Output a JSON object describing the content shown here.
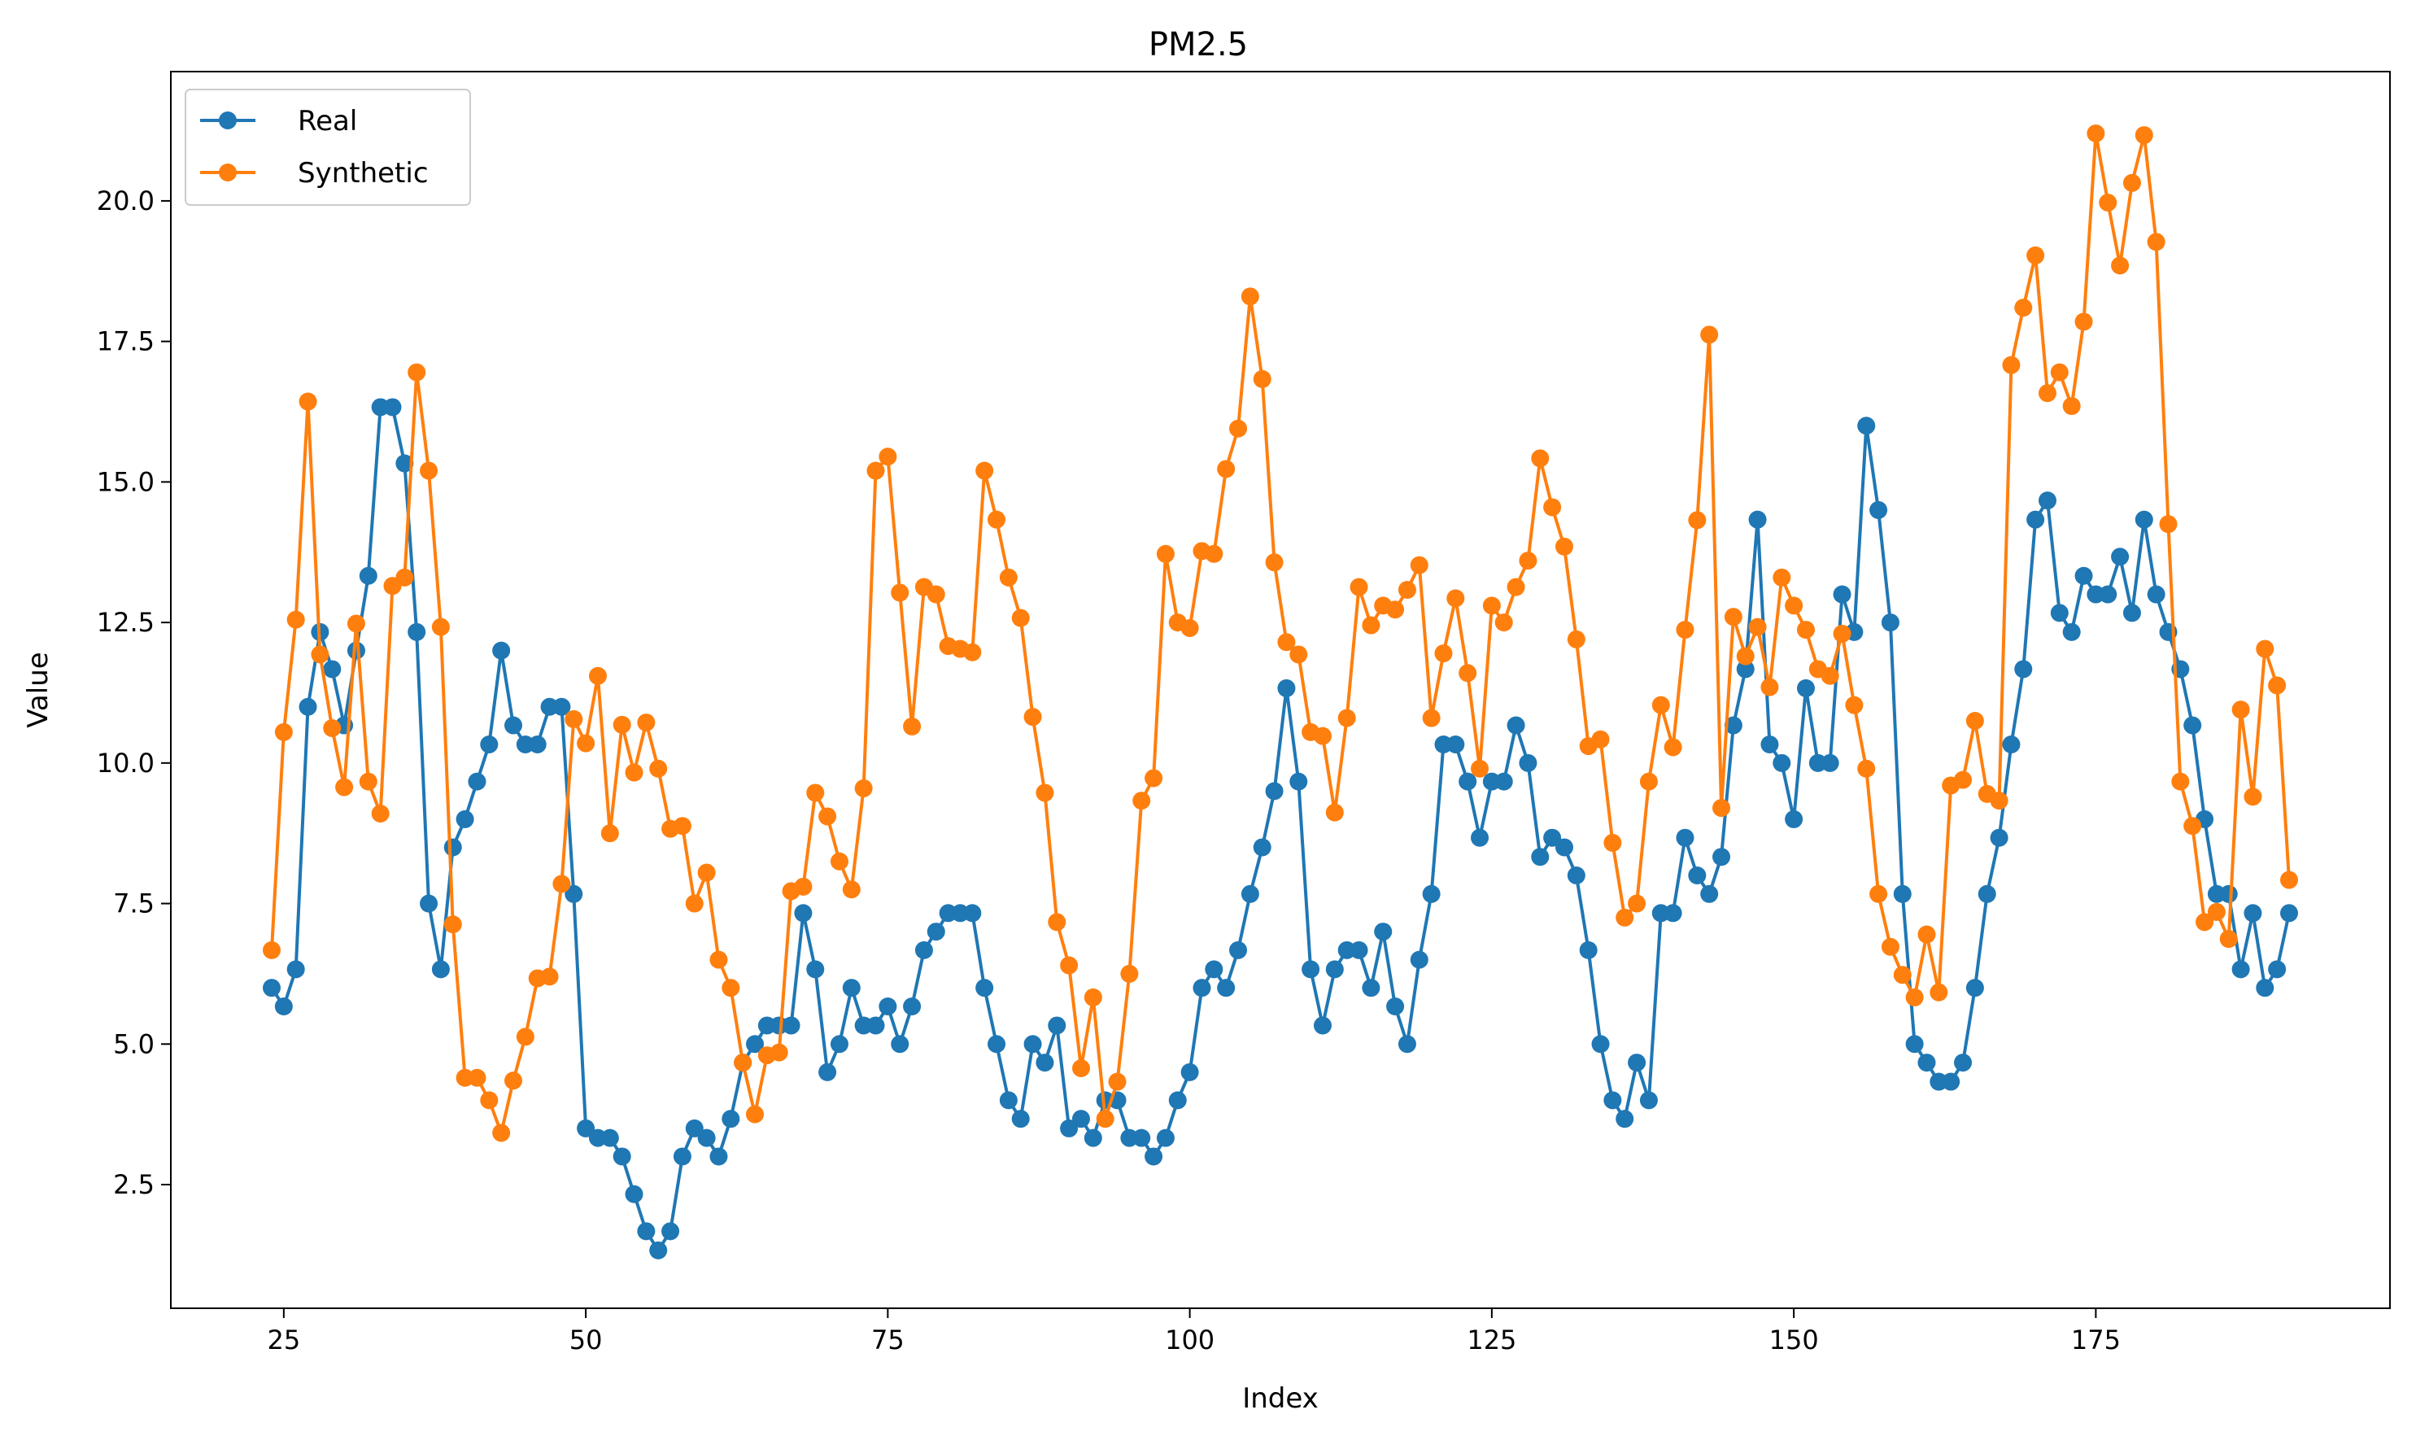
{
  "chart_data": {
    "type": "line",
    "title": "PM2.5",
    "xlabel": "Index",
    "ylabel": "Value",
    "xlim": [
      15.65,
      199.35
    ],
    "ylim": [
      0.3,
      22.3
    ],
    "xticks": [
      25,
      50,
      75,
      100,
      125,
      150,
      175
    ],
    "yticks": [
      2.5,
      5.0,
      7.5,
      10.0,
      12.5,
      15.0,
      17.5,
      20.0
    ],
    "xtick_labels": [
      "25",
      "50",
      "75",
      "100",
      "125",
      "150",
      "175"
    ],
    "ytick_labels": [
      "2.5",
      "5.0",
      "7.5",
      "10.0",
      "12.5",
      "15.0",
      "17.5",
      "20.0"
    ],
    "legend_position": "top-left",
    "marker": "circle",
    "x": [
      24,
      25,
      26,
      27,
      28,
      29,
      30,
      31,
      32,
      33,
      34,
      35,
      36,
      37,
      38,
      39,
      40,
      41,
      42,
      43,
      44,
      45,
      46,
      47,
      48,
      49,
      50,
      51,
      52,
      53,
      54,
      55,
      56,
      57,
      58,
      59,
      60,
      61,
      62,
      63,
      64,
      65,
      66,
      67,
      68,
      69,
      70,
      71,
      72,
      73,
      74,
      75,
      76,
      77,
      78,
      79,
      80,
      81,
      82,
      83,
      84,
      85,
      86,
      87,
      88,
      89,
      90,
      91,
      92,
      93,
      94,
      95,
      96,
      97,
      98,
      99,
      100,
      101,
      102,
      103,
      104,
      105,
      106,
      107,
      108,
      109,
      110,
      111,
      112,
      113,
      114,
      115,
      116,
      117,
      118,
      119,
      120,
      121,
      122,
      123,
      124,
      125,
      126,
      127,
      128,
      129,
      130,
      131,
      132,
      133,
      134,
      135,
      136,
      137,
      138,
      139,
      140,
      141,
      142,
      143,
      144,
      145,
      146,
      147,
      148,
      149,
      150,
      151,
      152,
      153,
      154,
      155,
      156,
      157,
      158,
      159,
      160,
      161,
      162,
      163,
      164,
      165,
      166,
      167,
      168,
      169,
      170,
      171,
      172,
      173,
      174,
      175,
      176,
      177,
      178,
      179,
      180,
      181,
      182,
      183,
      184,
      185,
      186,
      187,
      188,
      189,
      190,
      191
    ],
    "series": [
      {
        "name": "Real",
        "color": "#1f77b4",
        "values": [
          6.0,
          5.67,
          6.33,
          11.0,
          12.33,
          11.67,
          10.67,
          12.0,
          13.33,
          16.33,
          16.33,
          15.33,
          12.33,
          7.5,
          6.33,
          8.5,
          9.0,
          9.67,
          10.33,
          12.0,
          10.67,
          10.33,
          10.33,
          11.0,
          11.0,
          7.67,
          3.5,
          3.33,
          3.33,
          3.0,
          2.33,
          1.67,
          1.33,
          1.67,
          3.0,
          3.5,
          3.33,
          3.0,
          3.67,
          4.67,
          5.0,
          5.33,
          5.33,
          5.33,
          7.33,
          6.33,
          4.5,
          5.0,
          6.0,
          5.33,
          5.33,
          5.67,
          5.0,
          5.67,
          6.67,
          7.0,
          7.33,
          7.33,
          7.33,
          6.0,
          5.0,
          4.0,
          3.67,
          5.0,
          4.67,
          5.33,
          3.5,
          3.67,
          3.33,
          4.0,
          4.0,
          3.33,
          3.33,
          3.0,
          3.33,
          4.0,
          4.5,
          6.0,
          6.33,
          6.0,
          6.67,
          7.67,
          8.5,
          9.5,
          11.33,
          9.67,
          6.33,
          5.33,
          6.33,
          6.67,
          6.67,
          6.0,
          7.0,
          5.67,
          5.0,
          6.5,
          7.67,
          10.33,
          10.33,
          9.67,
          8.67,
          9.67,
          9.67,
          10.67,
          10.0,
          8.33,
          8.67,
          8.5,
          8.0,
          6.67,
          5.0,
          4.0,
          3.67,
          4.67,
          4.0,
          7.33,
          7.33,
          8.67,
          8.0,
          7.67,
          8.33,
          10.67,
          11.67,
          14.33,
          10.33,
          10.0,
          9.0,
          11.33,
          10.0,
          10.0,
          13.0,
          12.33,
          16.0,
          14.5,
          12.5,
          7.67,
          5.0,
          4.67,
          4.33,
          4.33,
          4.67,
          6.0,
          7.67,
          8.67,
          10.33,
          11.67,
          14.33,
          14.67,
          12.67,
          12.33,
          13.33,
          13.0,
          13.0,
          13.67,
          12.67,
          14.33,
          13.0,
          12.33,
          11.67,
          10.67,
          9.0,
          7.67,
          7.67,
          6.33,
          7.33,
          6.0,
          6.33,
          7.33
        ]
      },
      {
        "name": "Synthetic",
        "color": "#ff7f0e",
        "values": [
          6.67,
          10.55,
          12.55,
          16.43,
          11.93,
          10.62,
          9.57,
          12.48,
          9.67,
          9.1,
          13.15,
          13.3,
          16.95,
          15.2,
          12.42,
          7.13,
          4.4,
          4.4,
          4.0,
          3.42,
          4.35,
          5.13,
          6.17,
          6.2,
          7.85,
          10.78,
          10.35,
          11.55,
          8.75,
          10.68,
          9.83,
          10.72,
          9.9,
          8.83,
          8.88,
          7.5,
          8.05,
          6.5,
          6.0,
          4.67,
          3.75,
          4.8,
          4.85,
          7.72,
          7.8,
          9.47,
          9.05,
          8.25,
          7.75,
          9.55,
          15.2,
          15.45,
          13.03,
          10.65,
          13.13,
          13.0,
          12.08,
          12.03,
          11.97,
          15.2,
          14.33,
          13.3,
          12.58,
          10.82,
          9.47,
          7.17,
          6.4,
          4.57,
          5.83,
          3.67,
          4.33,
          6.25,
          9.33,
          9.73,
          13.72,
          12.5,
          12.4,
          13.77,
          13.72,
          15.23,
          15.95,
          18.3,
          16.83,
          13.57,
          12.15,
          11.93,
          10.55,
          10.48,
          9.12,
          10.8,
          13.13,
          12.45,
          12.8,
          12.73,
          13.08,
          13.52,
          10.8,
          11.95,
          12.93,
          11.6,
          9.9,
          12.8,
          12.5,
          13.13,
          13.6,
          15.42,
          14.55,
          13.85,
          12.2,
          10.3,
          10.42,
          8.58,
          7.25,
          7.5,
          9.67,
          11.03,
          10.28,
          12.37,
          14.32,
          17.62,
          9.2,
          12.6,
          11.9,
          12.42,
          11.35,
          13.3,
          12.8,
          12.37,
          11.67,
          11.55,
          12.3,
          11.03,
          9.9,
          7.67,
          6.73,
          6.23,
          5.83,
          6.95,
          5.92,
          9.6,
          9.7,
          10.75,
          9.45,
          9.33,
          17.08,
          18.1,
          19.03,
          16.58,
          16.95,
          16.35,
          17.85,
          21.2,
          19.97,
          18.85,
          20.32,
          21.17,
          19.27,
          14.25,
          9.67,
          8.88,
          7.17,
          7.35,
          6.87,
          10.95,
          9.4,
          12.03,
          11.38,
          7.92
        ]
      }
    ]
  }
}
